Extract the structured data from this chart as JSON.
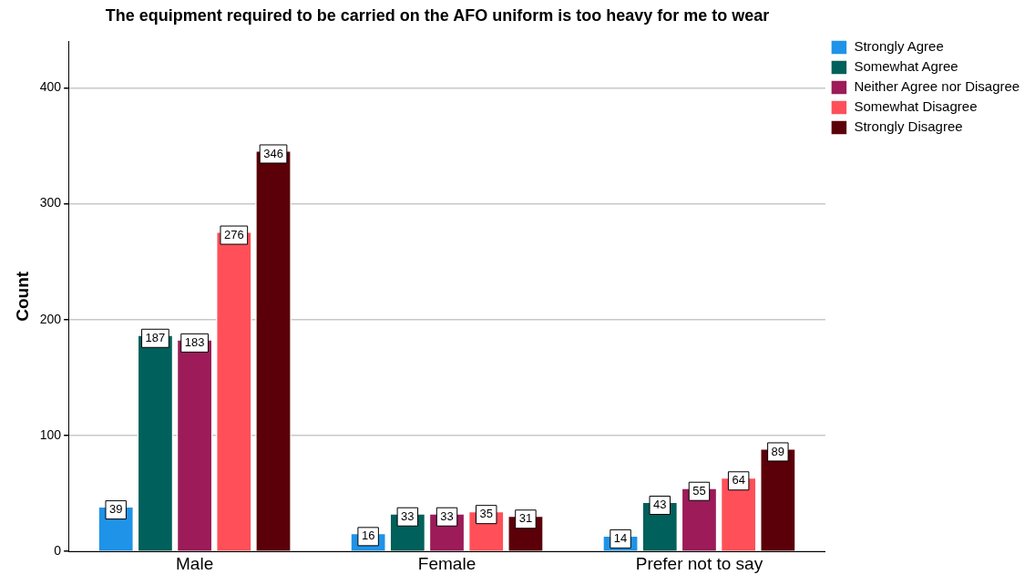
{
  "chart_data": {
    "type": "bar",
    "title": "The equipment required to be carried on the AFO uniform is too heavy for me to wear",
    "ylabel": "Count",
    "categories": [
      "Male",
      "Female",
      "Prefer not to say"
    ],
    "series": [
      {
        "name": "Strongly Agree",
        "color": "#1f93e8",
        "values": [
          39,
          16,
          14
        ]
      },
      {
        "name": "Somewhat Agree",
        "color": "#00605b",
        "values": [
          187,
          33,
          43
        ]
      },
      {
        "name": "Neither Agree nor Disagree",
        "color": "#9c1b58",
        "values": [
          183,
          33,
          55
        ]
      },
      {
        "name": "Somewhat Disagree",
        "color": "#ff5059",
        "values": [
          276,
          35,
          64
        ]
      },
      {
        "name": "Strongly Disagree",
        "color": "#5b0008",
        "values": [
          346,
          31,
          89
        ]
      }
    ],
    "ylim": [
      0,
      440
    ],
    "yticks": [
      0,
      100,
      200,
      300,
      400
    ],
    "grid": "y",
    "legend": "top right",
    "data_labels": true
  }
}
